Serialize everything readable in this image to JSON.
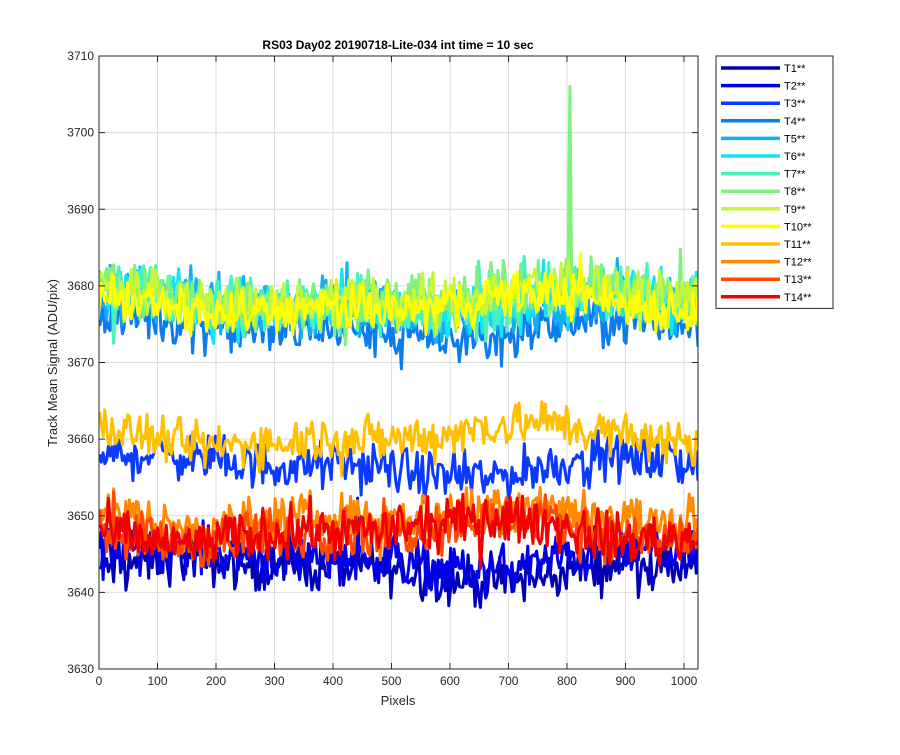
{
  "chart_data": {
    "type": "line",
    "title": "RS03 Day02 20190718-Lite-034 int time = 10 sec",
    "xlabel": "Pixels",
    "ylabel": "Track Mean Signal (ADU/pix)",
    "xlim": [
      0,
      1024
    ],
    "ylim": [
      3630,
      3710
    ],
    "xticks": [
      0,
      100,
      200,
      300,
      400,
      500,
      600,
      700,
      800,
      900,
      1000
    ],
    "yticks": [
      3630,
      3640,
      3650,
      3660,
      3670,
      3680,
      3690,
      3700,
      3710
    ],
    "grid": true,
    "legend_position": "outside-top-right",
    "series": [
      {
        "name": "T1**",
        "color": "#0000B4",
        "mean": 3643.0,
        "noise": 1.6
      },
      {
        "name": "T2**",
        "color": "#0000E8",
        "mean": 3644.5,
        "noise": 1.6
      },
      {
        "name": "T3**",
        "color": "#0A3AFF",
        "mean": 3656.5,
        "noise": 1.5
      },
      {
        "name": "T4**",
        "color": "#0A7CF0",
        "mean": 3674.5,
        "noise": 1.7
      },
      {
        "name": "T5**",
        "color": "#11B0F4",
        "mean": 3677.5,
        "noise": 1.8
      },
      {
        "name": "T6**",
        "color": "#16E4F2",
        "mean": 3677.5,
        "noise": 1.8
      },
      {
        "name": "T7**",
        "color": "#46F2C0",
        "mean": 3678.0,
        "noise": 1.8
      },
      {
        "name": "T8**",
        "color": "#7EF27C",
        "mean": 3678.5,
        "noise": 1.8,
        "spike": {
          "x": 805,
          "y": 3706
        }
      },
      {
        "name": "T9**",
        "color": "#C6F63A",
        "mean": 3678.5,
        "noise": 1.7
      },
      {
        "name": "T10**",
        "color": "#FFFF00",
        "mean": 3677.5,
        "noise": 1.5
      },
      {
        "name": "T11**",
        "color": "#FFC000",
        "mean": 3660.5,
        "noise": 1.5
      },
      {
        "name": "T12**",
        "color": "#FF8A00",
        "mean": 3650.0,
        "noise": 1.6
      },
      {
        "name": "T13**",
        "color": "#FF4A00",
        "mean": 3648.0,
        "noise": 1.6
      },
      {
        "name": "T14**",
        "color": "#F00000",
        "mean": 3648.0,
        "noise": 1.6
      }
    ]
  }
}
